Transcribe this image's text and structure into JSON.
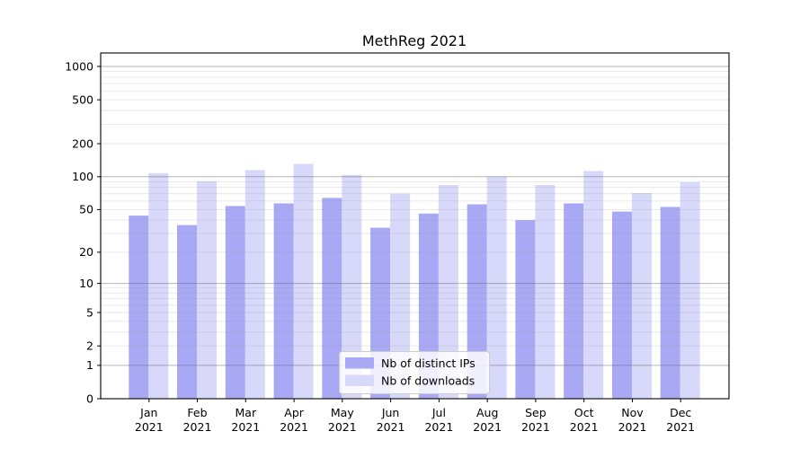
{
  "chart_data": {
    "type": "bar",
    "title": "MethReg 2021",
    "categories": [
      "Jan",
      "Feb",
      "Mar",
      "Apr",
      "May",
      "Jun",
      "Jul",
      "Aug",
      "Sep",
      "Oct",
      "Nov",
      "Dec"
    ],
    "year_label": "2021",
    "series": [
      {
        "name": "Nb of distinct IPs",
        "color": "#a8a8f5",
        "values": [
          44,
          36,
          54,
          57,
          64,
          34,
          46,
          56,
          40,
          57,
          48,
          53
        ]
      },
      {
        "name": "Nb of downloads",
        "color": "#d8d8fa",
        "values": [
          108,
          91,
          115,
          131,
          104,
          70,
          84,
          100,
          84,
          113,
          71,
          89
        ]
      }
    ],
    "yscale": "log1p",
    "ylim": [
      0,
      1325
    ],
    "yticks": [
      0,
      1,
      2,
      5,
      10,
      20,
      50,
      100,
      200,
      500,
      1000
    ],
    "minor_gridlines": [
      2,
      3,
      4,
      5,
      6,
      7,
      8,
      9,
      20,
      30,
      40,
      50,
      60,
      70,
      80,
      90,
      200,
      300,
      400,
      500,
      600,
      700,
      800,
      900
    ],
    "major_gridlines": [
      1,
      10,
      100,
      1000
    ],
    "grid": true,
    "legend_position": "lower center",
    "colors": {
      "major_grid": "#b6b6b6",
      "minor_grid": "#e9e9e9",
      "spine": "#000000",
      "legend_border": "#cccccc",
      "legend_bg": "#ffffff"
    }
  }
}
